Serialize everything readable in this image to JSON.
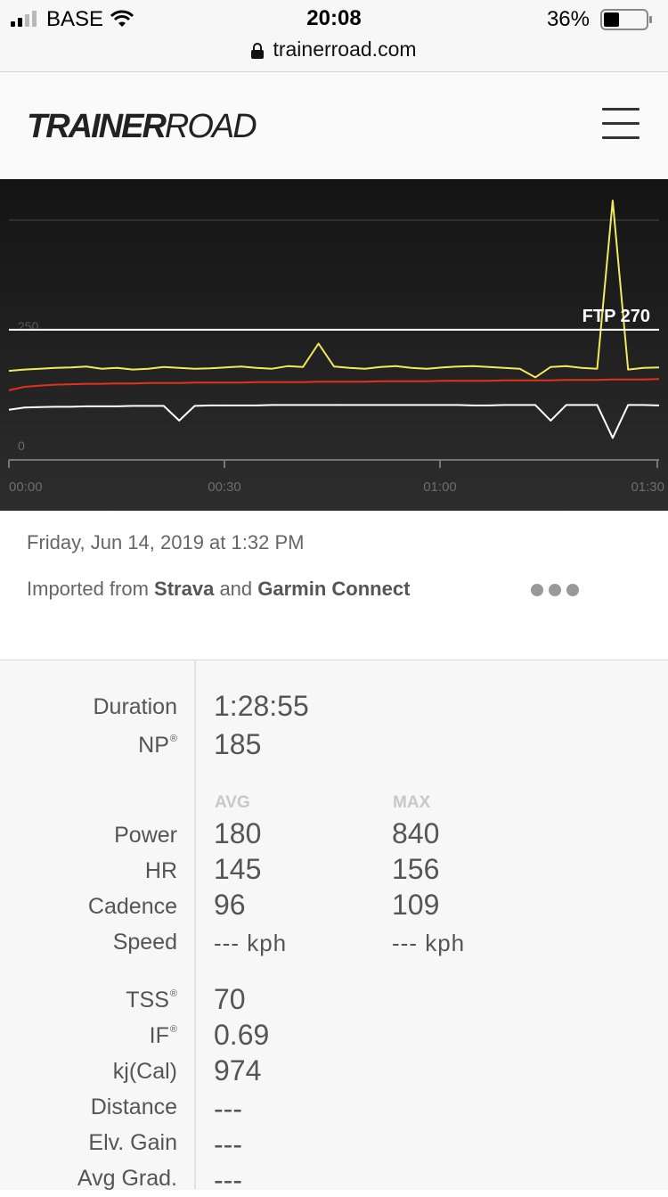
{
  "status": {
    "carrier": "BASE",
    "time": "20:08",
    "battery": "36%",
    "url": "trainerroad.com"
  },
  "header": {
    "logo_bold": "TRAINER",
    "logo_light": "ROAD"
  },
  "chart_data": {
    "type": "line",
    "ftp_label": "FTP 270",
    "ftp": 270,
    "y_tick_labels": [
      "250",
      "0"
    ],
    "x_tick_labels": [
      "00:00",
      "00:30",
      "01:00",
      "01:30"
    ],
    "x_range_minutes": [
      0,
      90
    ],
    "series": [
      {
        "color": "#f2ea5c",
        "values": [
          175,
          178,
          180,
          182,
          183,
          185,
          180,
          182,
          178,
          180,
          184,
          182,
          180,
          181,
          183,
          185,
          182,
          180,
          186,
          184,
          238,
          185,
          182,
          180,
          184,
          186,
          182,
          180,
          183,
          185,
          186,
          184,
          182,
          180,
          160,
          184,
          186,
          182,
          180,
          840,
          178,
          182,
          183
        ]
      },
      {
        "color": "#e0321c",
        "values": [
          130,
          138,
          141,
          143,
          144,
          145,
          145,
          146,
          146,
          147,
          147,
          147,
          148,
          148,
          148,
          148,
          149,
          149,
          149,
          149,
          150,
          150,
          150,
          150,
          151,
          151,
          151,
          151,
          152,
          152,
          152,
          152,
          153,
          153,
          153,
          153,
          154,
          154,
          154,
          155,
          155,
          155,
          156
        ]
      },
      {
        "color": "#ffffff",
        "values": [
          85,
          90,
          91,
          92,
          92,
          93,
          93,
          93,
          94,
          94,
          94,
          60,
          94,
          95,
          95,
          95,
          95,
          96,
          96,
          96,
          96,
          96,
          96,
          96,
          96,
          96,
          96,
          96,
          96,
          96,
          95,
          95,
          96,
          96,
          96,
          60,
          96,
          96,
          96,
          20,
          96,
          96,
          95
        ]
      }
    ]
  },
  "activity": {
    "date": "Friday, Jun 14, 2019 at 1:32 PM",
    "imported_prefix": "Imported from ",
    "source1": "Strava",
    "and": " and ",
    "source2": "Garmin Connect"
  },
  "stats": {
    "duration_label": "Duration",
    "duration": "1:28:55",
    "np_label": "NP",
    "np": "185",
    "reg": "®",
    "avg_header": "AVG",
    "max_header": "MAX",
    "power_label": "Power",
    "power_avg": "180",
    "power_max": "840",
    "hr_label": "HR",
    "hr_avg": "145",
    "hr_max": "156",
    "cadence_label": "Cadence",
    "cadence_avg": "96",
    "cadence_max": "109",
    "speed_label": "Speed",
    "speed_avg": "--- kph",
    "speed_max": "--- kph",
    "tss_label": "TSS",
    "tss": "70",
    "if_label": "IF",
    "if": "0.69",
    "kj_label": "kj(Cal)",
    "kj": "974",
    "distance_label": "Distance",
    "distance": "---",
    "elv_label": "Elv. Gain",
    "elv": "---",
    "grad_label": "Avg Grad.",
    "grad": "---"
  }
}
